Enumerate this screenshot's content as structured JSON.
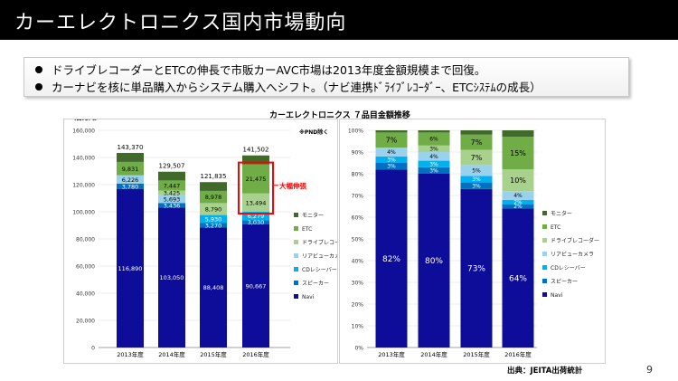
{
  "header": {
    "title": "カーエレクトロニクス国内市場動向"
  },
  "bullets": [
    "ドライブレコーダーとETCの伸長で市販カーAVC市場は2013年度金額規模まで回復。",
    "カーナビを核に単品購入からシステム購入へシフト。（ナビ連携ﾄﾞﾗｲﾌﾞﾚｺｰﾀﾞｰ、ETCｼｽﾃﾑの成長）"
  ],
  "charts_title": "カーエレクトロニクス ７品目金額推移",
  "colors": {
    "navi": "#0d0d99",
    "speaker": "#0070c0",
    "cd": "#00b0f0",
    "rear": "#9ad2ee",
    "drec": "#a9d18e",
    "etc": "#70ad47",
    "monitor": "#3f6a2a",
    "highlight": "#ff0000"
  },
  "chart_data": [
    {
      "type": "bar",
      "stacked": true,
      "unit_label": "（百万円）",
      "note": "※PND除く",
      "categories": [
        "2013年度",
        "2014年度",
        "2015年度",
        "2016年度"
      ],
      "y_ticks": [
        "0",
        "20,000",
        "40,000",
        "60,000",
        "80,000",
        "100,000",
        "120,000",
        "140,000",
        "160,000"
      ],
      "ylim": [
        0,
        160000
      ],
      "totals": [
        143370,
        129507,
        121835,
        141502
      ],
      "total_labels": [
        "143,370",
        "129,507",
        "121,835",
        "141,502"
      ],
      "series": [
        {
          "name": "Navi",
          "color": "#0d0d99",
          "values": [
            116890,
            103050,
            88408,
            90667
          ],
          "labels": [
            "116,890",
            "103,050",
            "88,408",
            "90,667"
          ]
        },
        {
          "name": "スピーカー",
          "color": "#0070c0",
          "values": [
            3780,
            3436,
            3270,
            3030
          ],
          "labels": [
            "3,780",
            "3,436",
            "3,270",
            "3,030"
          ]
        },
        {
          "name": "CDレシーバー",
          "color": "#00b0f0",
          "values": [
            0,
            0,
            5930,
            6279
          ],
          "labels": [
            "",
            "",
            "5,930",
            "6,279"
          ]
        },
        {
          "name": "リアビューカメラ",
          "color": "#9ad2ee",
          "values": [
            6226,
            5693,
            0,
            0
          ],
          "labels": [
            "6,226",
            "5,693",
            "",
            ""
          ]
        },
        {
          "name": "ドライブレコーダー",
          "color": "#a9d18e",
          "values": [
            0,
            3425,
            8790,
            13494
          ],
          "labels": [
            "",
            "3,425",
            "8,790",
            "13,494"
          ]
        },
        {
          "name": "ETC",
          "color": "#70ad47",
          "values": [
            9831,
            7447,
            8978,
            21475
          ],
          "labels": [
            "9,831",
            "7,447",
            "8,978",
            "21,475"
          ]
        },
        {
          "name": "モニター",
          "color": "#3f6a2a",
          "values": [
            6643,
            6456,
            6459,
            6557
          ],
          "labels": [
            "",
            "",
            "",
            ""
          ]
        }
      ],
      "annotation": "大幅伸張",
      "legend_position": "right"
    },
    {
      "type": "bar",
      "stacked": true,
      "percent": true,
      "categories": [
        "2013年度",
        "2014年度",
        "2015年度",
        "2016年度"
      ],
      "y_ticks": [
        "0%",
        "10%",
        "20%",
        "30%",
        "40%",
        "50%",
        "60%",
        "70%",
        "80%",
        "90%",
        "100%"
      ],
      "ylim": [
        0,
        100
      ],
      "series": [
        {
          "name": "Navi",
          "color": "#0d0d99",
          "values": [
            82,
            80,
            73,
            64
          ],
          "labels": [
            "82%",
            "80%",
            "73%",
            "64%"
          ]
        },
        {
          "name": "スピーカー",
          "color": "#0070c0",
          "values": [
            3,
            3,
            3,
            2
          ],
          "labels": [
            "3%",
            "3%",
            "3%",
            "2%"
          ]
        },
        {
          "name": "CDレシーバー",
          "color": "#00b0f0",
          "values": [
            3,
            3,
            3,
            2
          ],
          "labels": [
            "3%",
            "3%",
            "3%",
            "2%"
          ]
        },
        {
          "name": "リアビューカメラ",
          "color": "#9ad2ee",
          "values": [
            4,
            4,
            5,
            4
          ],
          "labels": [
            "4%",
            "4%",
            "5%",
            "4%"
          ]
        },
        {
          "name": "ドライブレコーダー",
          "color": "#a9d18e",
          "values": [
            0,
            3,
            7,
            10
          ],
          "labels": [
            "",
            "3%",
            "7%",
            "10%"
          ]
        },
        {
          "name": "ETC",
          "color": "#70ad47",
          "values": [
            7,
            6,
            7,
            15
          ],
          "labels": [
            "7%",
            "6%",
            "7%",
            "15%"
          ]
        },
        {
          "name": "モニター",
          "color": "#3f6a2a",
          "values": [
            1,
            1,
            2,
            3
          ],
          "labels": [
            "",
            "",
            "",
            ""
          ]
        }
      ],
      "legend_position": "right"
    }
  ],
  "legend_order": [
    "モニター",
    "ETC",
    "ドライブレコーダー",
    "リアビューカメラ",
    "CDレシーバー",
    "スピーカー",
    "Navi"
  ],
  "source": "出典：JEITA出荷統計",
  "page_number": "9"
}
